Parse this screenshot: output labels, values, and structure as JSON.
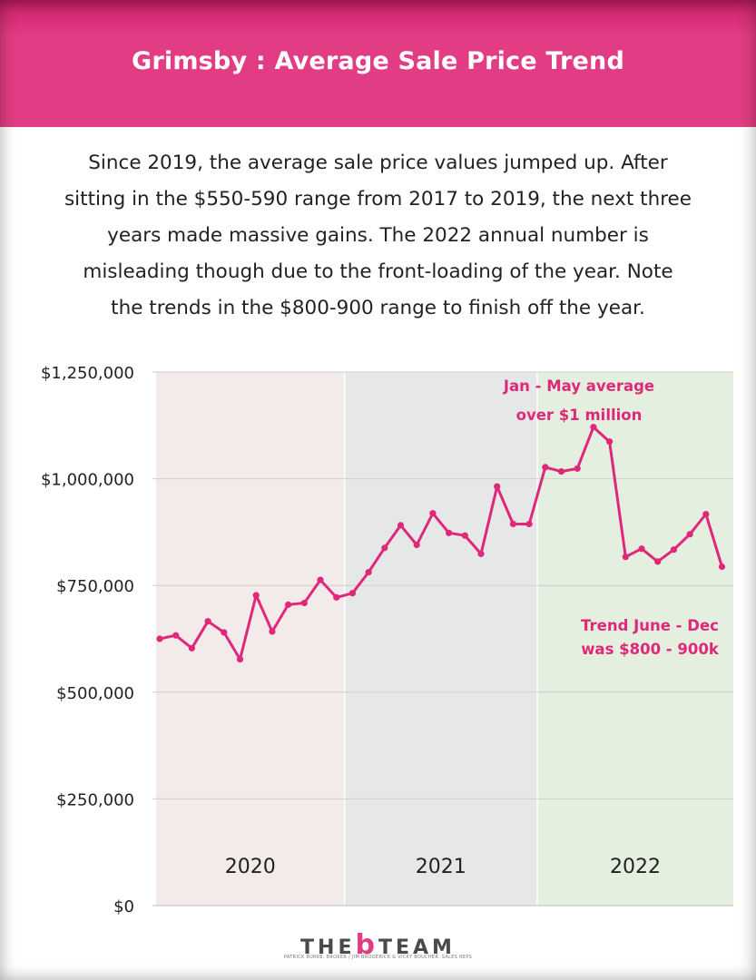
{
  "header": {
    "title": "Grimsby : Average Sale Price Trend"
  },
  "intro": {
    "lines": [
      "Since 2019, the average sale price values jumped up. After",
      "sitting in the $550-590 range from 2017 to 2019, the next three",
      "years made massive gains. The 2022 annual number is",
      "misleading though due to the front-loading of the year. Note",
      "the trends in the $800-900 range to finish off the year."
    ]
  },
  "chart_data": {
    "type": "line",
    "title": "",
    "xlabel": "",
    "ylabel": "",
    "ylim": [
      0,
      1250000
    ],
    "yticks": [
      "$0",
      "$250,000",
      "$500,000",
      "$750,000",
      "$1,000,000",
      "$1,250,000"
    ],
    "ytick_values": [
      0,
      250000,
      500000,
      750000,
      1000000,
      1250000
    ],
    "grid": true,
    "line_color": "#e0287a",
    "periods": [
      {
        "label": "2020",
        "start_index": 0,
        "end_index": 12,
        "color": "#f3eaea"
      },
      {
        "label": "2021",
        "start_index": 12,
        "end_index": 24,
        "color": "#e6e8e8"
      },
      {
        "label": "2022",
        "start_index": 24,
        "end_index": 36,
        "color": "#e4efdf"
      }
    ],
    "series": [
      {
        "values": [
          625000,
          633000,
          603000,
          666000,
          640000,
          577000,
          727000,
          642000,
          705000,
          709000,
          763000,
          722000,
          732000,
          781000,
          838000,
          891000,
          845000,
          919000,
          873000,
          867000,
          824000,
          982000,
          894000,
          894000,
          1027000,
          1017000,
          1024000,
          1121000,
          1087000,
          817000,
          836000,
          806000,
          834000,
          870000,
          917000,
          794000
        ]
      }
    ],
    "annotations": [
      {
        "lines": [
          "Jan - May average",
          "over $1 million"
        ]
      },
      {
        "lines": [
          "Trend June - Dec",
          "was $800 - 900k"
        ]
      }
    ]
  },
  "footer": {
    "logo_left": "THE",
    "logo_mid": "b",
    "logo_right": "TEAM",
    "tagline": "PATRICK BURKE, BROKER / JIM BRODERICK & VICKY BOUCHER, SALES REPS"
  }
}
